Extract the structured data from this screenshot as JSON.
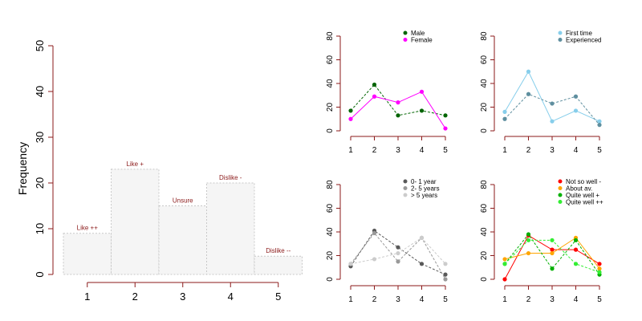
{
  "colors": {
    "axis": "#8b1a1a",
    "tick_text": "#000000",
    "hist_fill": "#f5f5f5",
    "hist_border": "#c8c8c8",
    "bar_label": "#8b1a1a"
  },
  "chart_data": [
    {
      "id": "main",
      "type": "bar",
      "categories": [
        "1",
        "2",
        "3",
        "4",
        "5"
      ],
      "values": [
        9,
        23,
        15,
        20,
        4
      ],
      "bar_labels": [
        "Like ++",
        "Like +",
        "Unsure",
        "Dislike -",
        "Dislike --"
      ],
      "xlabel": "",
      "ylabel": "Frequency",
      "ylim": [
        0,
        50
      ],
      "yticks": [
        0,
        10,
        20,
        30,
        40,
        50
      ],
      "grid": false
    },
    {
      "id": "gender",
      "type": "line",
      "x": [
        1,
        2,
        3,
        4,
        5
      ],
      "ylim": [
        0,
        80
      ],
      "yticks": [
        0,
        20,
        40,
        60,
        80
      ],
      "legend_position": "top-right",
      "series": [
        {
          "name": "Male",
          "values": [
            17,
            39,
            13,
            17,
            13
          ],
          "color": "#006400",
          "dash": "dashed"
        },
        {
          "name": "Female",
          "values": [
            10,
            29,
            24,
            33,
            2
          ],
          "color": "#ff00ff",
          "dash": "solid"
        }
      ]
    },
    {
      "id": "experience",
      "type": "line",
      "x": [
        1,
        2,
        3,
        4,
        5
      ],
      "ylim": [
        0,
        80
      ],
      "yticks": [
        0,
        20,
        40,
        60,
        80
      ],
      "legend_position": "top-right",
      "series": [
        {
          "name": "First time",
          "values": [
            16,
            50,
            8,
            17,
            8
          ],
          "color": "#87ceeb",
          "dash": "solid"
        },
        {
          "name": "Experienced",
          "values": [
            10,
            31,
            23,
            29,
            5
          ],
          "color": "#5f8f9f",
          "dash": "dashed"
        }
      ]
    },
    {
      "id": "years",
      "type": "line",
      "x": [
        1,
        2,
        3,
        4,
        5
      ],
      "ylim": [
        0,
        80
      ],
      "yticks": [
        0,
        20,
        40,
        60,
        80
      ],
      "legend_position": "top-right",
      "series": [
        {
          "name": "0- 1 year",
          "values": [
            11,
            41,
            27,
            13,
            4
          ],
          "color": "#595959",
          "dash": "dashed"
        },
        {
          "name": "2- 5 years",
          "values": [
            13,
            39,
            15,
            35,
            0
          ],
          "color": "#999999",
          "dash": "dashed"
        },
        {
          "name": "> 5 years",
          "values": [
            13,
            17,
            22,
            35,
            13
          ],
          "color": "#cccccc",
          "dash": "dashed"
        }
      ]
    },
    {
      "id": "wellness",
      "type": "line",
      "x": [
        1,
        2,
        3,
        4,
        5
      ],
      "ylim": [
        0,
        80
      ],
      "yticks": [
        0,
        20,
        40,
        60,
        80
      ],
      "legend_position": "top-right",
      "series": [
        {
          "name": "Not so well -",
          "values": [
            0,
            37,
            25,
            25,
            13
          ],
          "color": "#ff0000",
          "dash": "solid"
        },
        {
          "name": "About av.",
          "values": [
            17,
            22,
            22,
            35,
            9
          ],
          "color": "#ffa500",
          "dash": "solid"
        },
        {
          "name": "Quite well +",
          "values": [
            13,
            38,
            9,
            33,
            4
          ],
          "color": "#00b000",
          "dash": "dashed"
        },
        {
          "name": "Quite well ++",
          "values": [
            13,
            33,
            33,
            13,
            6
          ],
          "color": "#33ee33",
          "dash": "dashed"
        }
      ]
    }
  ]
}
